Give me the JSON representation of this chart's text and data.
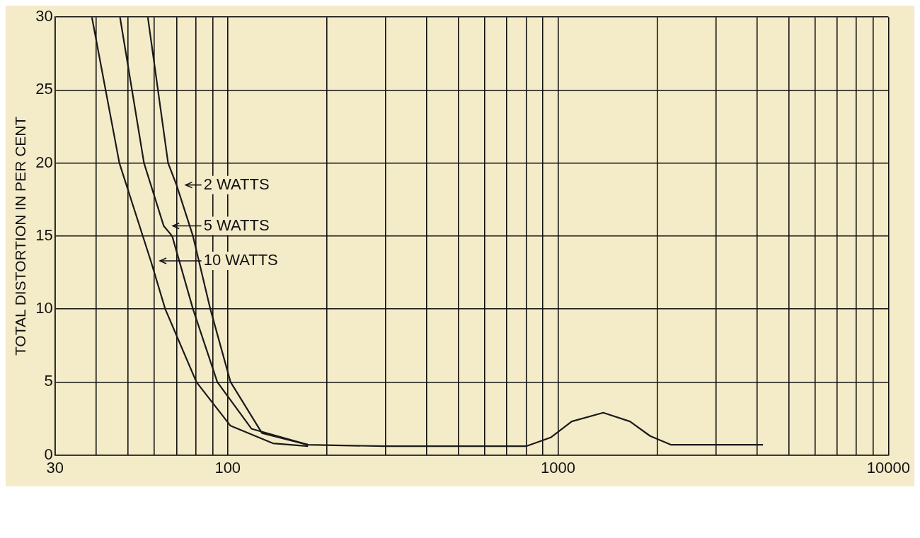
{
  "chart_data": {
    "type": "line",
    "ylabel": "TOTAL DISTORTION IN PER CENT",
    "log": "x",
    "grid": true,
    "legend": "left",
    "marker": "none",
    "line_style": "solid",
    "xlim": [
      30,
      10000
    ],
    "ylim": [
      0,
      30
    ],
    "xticks": [
      30,
      {
        "value": 40,
        "label": null
      },
      {
        "value": 50,
        "label": null
      },
      {
        "value": 60,
        "label": null
      },
      {
        "value": 70,
        "label": null
      },
      {
        "value": 80,
        "label": null
      },
      {
        "value": 90,
        "label": null
      },
      100,
      {
        "value": 200,
        "label": null
      },
      {
        "value": 300,
        "label": null
      },
      {
        "value": 400,
        "label": null
      },
      {
        "value": 500,
        "label": null
      },
      {
        "value": 600,
        "label": null
      },
      {
        "value": 700,
        "label": null
      },
      {
        "value": 800,
        "label": null
      },
      {
        "value": 900,
        "label": null
      },
      1000,
      {
        "value": 2000,
        "label": null
      },
      {
        "value": 3000,
        "label": null
      },
      {
        "value": 4000,
        "label": null
      },
      {
        "value": 5000,
        "label": null
      },
      {
        "value": 6000,
        "label": null
      },
      {
        "value": 7000,
        "label": null
      },
      {
        "value": 8000,
        "label": null
      },
      {
        "value": 9000,
        "label": null
      },
      10000
    ],
    "yticks": [
      0,
      5,
      10,
      15,
      20,
      25,
      30
    ],
    "series": [
      {
        "name": "10 WATTS",
        "color": "#1a1a1a",
        "x": [
          38.8,
          47,
          58.5,
          64.7,
          80.4,
          102,
          137,
          175
        ],
        "values": [
          30,
          20,
          13.3,
          10,
          5,
          2,
          0.8,
          0.6
        ]
      },
      {
        "name": "5 WATTS",
        "color": "#1a1a1a",
        "x": [
          47.2,
          55.8,
          64,
          67.9,
          78.5,
          93,
          118,
          175
        ],
        "values": [
          30,
          20,
          15.7,
          15,
          10,
          5,
          1.8,
          0.7
        ]
      },
      {
        "name": "2 WATTS",
        "color": "#1a1a1a",
        "x": [
          57.3,
          66,
          70,
          78.5,
          88.6,
          102,
          127,
          175,
          300,
          500,
          800,
          950,
          1100,
          1370,
          1650,
          1900,
          2200,
          4170
        ],
        "values": [
          30,
          20,
          18.5,
          15,
          10,
          5,
          1.5,
          0.7,
          0.6,
          0.6,
          0.6,
          1.2,
          2.3,
          2.9,
          2.3,
          1.3,
          0.7,
          0.7
        ]
      }
    ]
  }
}
